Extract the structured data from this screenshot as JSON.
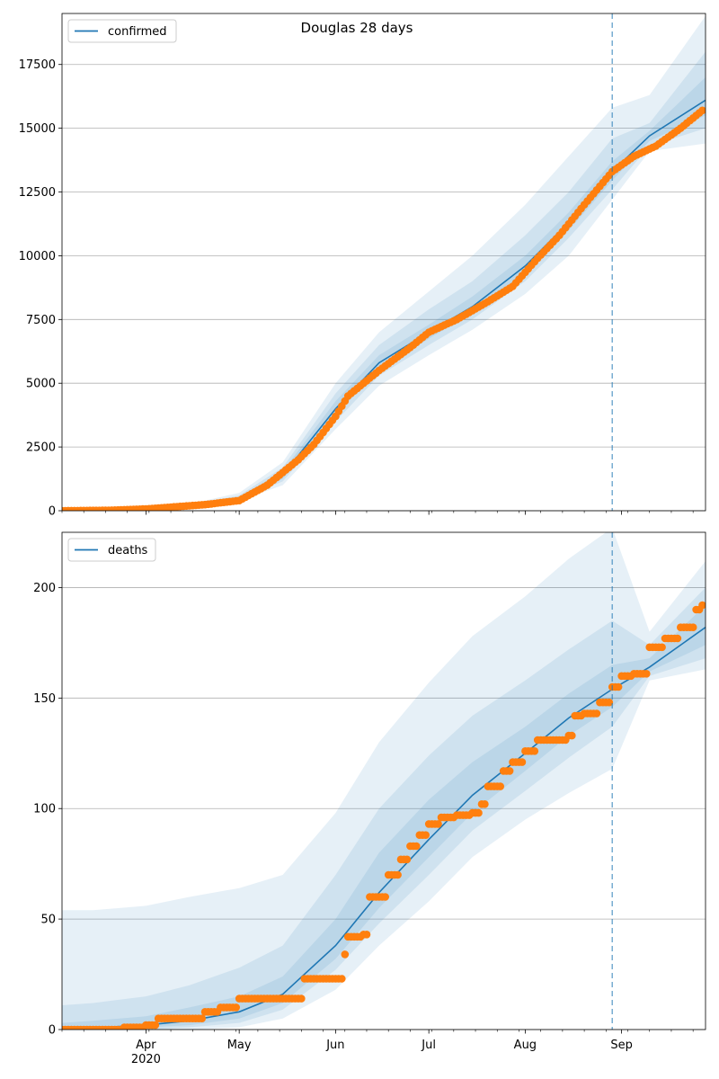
{
  "title": "Douglas 28 days",
  "colors": {
    "line": "#1f77b4",
    "observed": "#ff7f0e",
    "band": "#1f77b4",
    "grid": "#b0b0b0",
    "forecast_marker": "#1f77b4"
  },
  "x_axis": {
    "start": "2020-03-05",
    "end": "2020-09-28",
    "forecast_start": "2020-08-29",
    "month_ticks": [
      {
        "date": "2020-04-01",
        "label": "Apr",
        "year": "2020"
      },
      {
        "date": "2020-05-01",
        "label": "May",
        "year": ""
      },
      {
        "date": "2020-06-01",
        "label": "Jun",
        "year": ""
      },
      {
        "date": "2020-07-01",
        "label": "Jul",
        "year": ""
      },
      {
        "date": "2020-08-01",
        "label": "Aug",
        "year": ""
      },
      {
        "date": "2020-09-01",
        "label": "Sep",
        "year": ""
      }
    ]
  },
  "chart_data": [
    {
      "type": "line",
      "legend": "confirmed",
      "legend_position": "top-left",
      "grid": "horizontal",
      "ylim": [
        0,
        19500
      ],
      "yticks": [
        0,
        2500,
        5000,
        7500,
        10000,
        12500,
        15000,
        17500
      ],
      "model_line": [
        [
          "2020-03-05",
          0
        ],
        [
          "2020-03-20",
          20
        ],
        [
          "2020-04-01",
          80
        ],
        [
          "2020-04-15",
          200
        ],
        [
          "2020-05-01",
          500
        ],
        [
          "2020-05-15",
          1400
        ],
        [
          "2020-06-01",
          4000
        ],
        [
          "2020-06-15",
          5800
        ],
        [
          "2020-07-01",
          7000
        ],
        [
          "2020-07-15",
          8000
        ],
        [
          "2020-08-01",
          9600
        ],
        [
          "2020-08-15",
          11300
        ],
        [
          "2020-08-29",
          13300
        ],
        [
          "2020-09-10",
          14700
        ],
        [
          "2020-09-28",
          16100
        ]
      ],
      "bands": {
        "dates": [
          "2020-03-05",
          "2020-04-15",
          "2020-05-01",
          "2020-05-15",
          "2020-06-01",
          "2020-06-15",
          "2020-07-01",
          "2020-07-15",
          "2020-08-01",
          "2020-08-15",
          "2020-08-29",
          "2020-09-10",
          "2020-09-28"
        ],
        "outer_low": [
          0,
          150,
          400,
          1000,
          3200,
          4900,
          6100,
          7100,
          8500,
          10000,
          12200,
          14100,
          14400
        ],
        "outer_high": [
          0,
          260,
          700,
          1900,
          5000,
          7000,
          8600,
          10000,
          12000,
          13900,
          15800,
          16300,
          19400
        ],
        "mid_low": [
          0,
          170,
          440,
          1150,
          3500,
          5300,
          6500,
          7500,
          9000,
          10700,
          12600,
          14300,
          15000
        ],
        "mid_high": [
          0,
          230,
          600,
          1700,
          4600,
          6500,
          7900,
          9000,
          10800,
          12500,
          14600,
          15200,
          18000
        ],
        "inner_low": [
          0,
          185,
          470,
          1250,
          3750,
          5550,
          6750,
          7750,
          9300,
          11000,
          12950,
          14500,
          15500
        ],
        "inner_high": [
          0,
          215,
          540,
          1550,
          4300,
          6100,
          7300,
          8400,
          10000,
          11700,
          13700,
          14900,
          17000
        ]
      },
      "observed": [
        [
          "2020-03-05",
          0
        ],
        [
          "2020-03-20",
          15
        ],
        [
          "2020-04-01",
          70
        ],
        [
          "2020-04-10",
          150
        ],
        [
          "2020-04-20",
          240
        ],
        [
          "2020-05-01",
          400
        ],
        [
          "2020-05-10",
          1000
        ],
        [
          "2020-05-20",
          2000
        ],
        [
          "2020-05-25",
          2600
        ],
        [
          "2020-06-01",
          3700
        ],
        [
          "2020-06-05",
          4500
        ],
        [
          "2020-06-10",
          5000
        ],
        [
          "2020-06-15",
          5500
        ],
        [
          "2020-06-25",
          6400
        ],
        [
          "2020-07-01",
          7000
        ],
        [
          "2020-07-10",
          7500
        ],
        [
          "2020-07-20",
          8200
        ],
        [
          "2020-07-28",
          8800
        ],
        [
          "2020-08-05",
          9900
        ],
        [
          "2020-08-12",
          10800
        ],
        [
          "2020-08-20",
          12000
        ],
        [
          "2020-08-29",
          13300
        ],
        [
          "2020-09-05",
          13900
        ],
        [
          "2020-09-12",
          14300
        ],
        [
          "2020-09-20",
          15000
        ],
        [
          "2020-09-27",
          15700
        ]
      ]
    },
    {
      "type": "line",
      "legend": "deaths",
      "legend_position": "top-left",
      "grid": "horizontal",
      "ylim": [
        0,
        225
      ],
      "yticks": [
        0,
        50,
        100,
        150,
        200
      ],
      "model_line": [
        [
          "2020-03-05",
          0
        ],
        [
          "2020-04-01",
          2
        ],
        [
          "2020-04-15",
          4
        ],
        [
          "2020-05-01",
          8
        ],
        [
          "2020-05-15",
          16
        ],
        [
          "2020-06-01",
          38
        ],
        [
          "2020-06-15",
          62
        ],
        [
          "2020-07-01",
          86
        ],
        [
          "2020-07-15",
          106
        ],
        [
          "2020-08-01",
          125
        ],
        [
          "2020-08-15",
          141
        ],
        [
          "2020-08-29",
          154
        ],
        [
          "2020-09-10",
          164
        ],
        [
          "2020-09-28",
          182
        ]
      ],
      "bands": {
        "dates": [
          "2020-03-05",
          "2020-03-15",
          "2020-04-01",
          "2020-04-15",
          "2020-05-01",
          "2020-05-15",
          "2020-06-01",
          "2020-06-15",
          "2020-07-01",
          "2020-07-15",
          "2020-08-01",
          "2020-08-15",
          "2020-08-29",
          "2020-09-10",
          "2020-09-28"
        ],
        "outer_low": [
          0,
          0,
          0,
          0,
          1,
          5,
          18,
          38,
          58,
          78,
          95,
          107,
          118,
          158,
          163
        ],
        "outer_high": [
          54,
          54,
          56,
          60,
          64,
          70,
          98,
          130,
          157,
          178,
          196,
          213,
          227,
          180,
          212
        ],
        "mid_low": [
          0,
          0,
          0,
          1,
          3,
          9,
          27,
          48,
          70,
          90,
          108,
          123,
          137,
          160,
          168
        ],
        "mid_high": [
          11,
          12,
          15,
          20,
          28,
          38,
          70,
          100,
          124,
          142,
          158,
          172,
          185,
          174,
          200
        ],
        "inner_low": [
          0,
          0,
          1,
          2,
          5,
          12,
          32,
          55,
          78,
          98,
          117,
          133,
          146,
          162,
          174
        ],
        "inner_high": [
          3,
          4,
          6,
          10,
          15,
          24,
          50,
          80,
          104,
          121,
          137,
          152,
          165,
          168,
          192
        ]
      },
      "observed": [
        [
          "2020-03-05",
          0
        ],
        [
          "2020-03-25",
          1
        ],
        [
          "2020-04-01",
          2
        ],
        [
          "2020-04-05",
          5
        ],
        [
          "2020-04-15",
          5
        ],
        [
          "2020-04-20",
          8
        ],
        [
          "2020-04-25",
          10
        ],
        [
          "2020-05-01",
          14
        ],
        [
          "2020-05-10",
          14
        ],
        [
          "2020-05-20",
          14
        ],
        [
          "2020-05-22",
          23
        ],
        [
          "2020-06-02",
          23
        ],
        [
          "2020-06-04",
          34
        ],
        [
          "2020-06-05",
          42
        ],
        [
          "2020-06-10",
          43
        ],
        [
          "2020-06-12",
          60
        ],
        [
          "2020-06-18",
          70
        ],
        [
          "2020-06-22",
          77
        ],
        [
          "2020-06-25",
          83
        ],
        [
          "2020-06-28",
          88
        ],
        [
          "2020-07-01",
          93
        ],
        [
          "2020-07-05",
          96
        ],
        [
          "2020-07-10",
          97
        ],
        [
          "2020-07-15",
          98
        ],
        [
          "2020-07-18",
          102
        ],
        [
          "2020-07-20",
          110
        ],
        [
          "2020-07-25",
          117
        ],
        [
          "2020-07-28",
          121
        ],
        [
          "2020-08-01",
          126
        ],
        [
          "2020-08-05",
          131
        ],
        [
          "2020-08-10",
          131
        ],
        [
          "2020-08-15",
          133
        ],
        [
          "2020-08-17",
          142
        ],
        [
          "2020-08-20",
          143
        ],
        [
          "2020-08-25",
          148
        ],
        [
          "2020-08-29",
          155
        ],
        [
          "2020-09-01",
          160
        ],
        [
          "2020-09-05",
          161
        ],
        [
          "2020-09-10",
          173
        ],
        [
          "2020-09-15",
          177
        ],
        [
          "2020-09-20",
          182
        ],
        [
          "2020-09-25",
          190
        ],
        [
          "2020-09-27",
          192
        ]
      ]
    }
  ]
}
